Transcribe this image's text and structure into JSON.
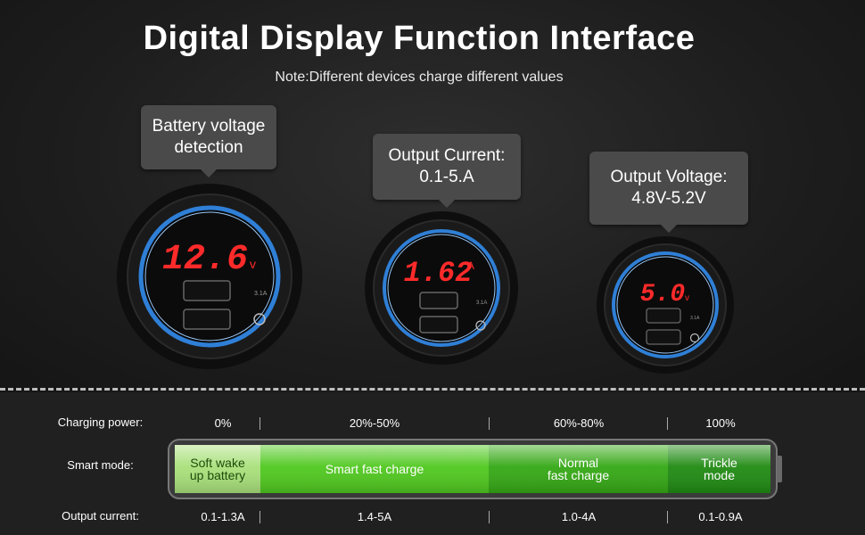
{
  "title": "Digital Display Function Interface",
  "note": "Note:Different devices charge different values",
  "bubbles": {
    "battery": [
      "Battery voltage",
      "detection"
    ],
    "current": [
      "Output Current:",
      "0.1-5.A"
    ],
    "voltage": [
      "Output Voltage:",
      "4.8V-5.2V"
    ]
  },
  "devices": {
    "d1": {
      "reading": "12.6",
      "unit": "v",
      "port_rating": "3.1A"
    },
    "d2": {
      "reading": "1.62",
      "unit": "A",
      "port_rating": "3.1A"
    },
    "d3": {
      "reading": "5.0",
      "unit": "v",
      "port_rating": "3.1A"
    }
  },
  "labels": {
    "charging_power": "Charging power:",
    "smart_mode": "Smart mode:",
    "output_current": "Output current:"
  },
  "power": [
    "0%",
    "20%-50%",
    "60%-80%",
    "100%"
  ],
  "modes": {
    "m1": [
      "Soft wake",
      "up battery"
    ],
    "m2": "Smart fast charge",
    "m3": [
      "Normal",
      "fast charge"
    ],
    "m4": [
      "Trickle",
      "mode"
    ]
  },
  "currents": [
    "0.1-1.3A",
    "1.4-5A",
    "1.0-4A",
    "0.1-0.9A"
  ],
  "colors": {
    "display_red": "#ff2a2a",
    "ring_blue": "#2f7fd6",
    "green_light": "#a8e07a",
    "green_mid": "#4fc81e",
    "green_dark": "#1f8a12"
  }
}
